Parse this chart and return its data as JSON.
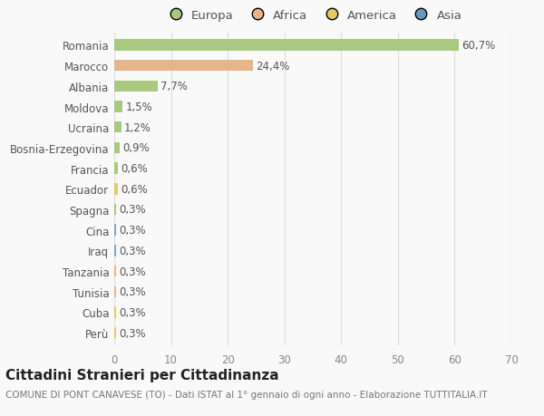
{
  "countries": [
    "Romania",
    "Marocco",
    "Albania",
    "Moldova",
    "Ucraina",
    "Bosnia-Erzegovina",
    "Francia",
    "Ecuador",
    "Spagna",
    "Cina",
    "Iraq",
    "Tanzania",
    "Tunisia",
    "Cuba",
    "Perù"
  ],
  "values": [
    60.7,
    24.4,
    7.7,
    1.5,
    1.2,
    0.9,
    0.6,
    0.6,
    0.3,
    0.3,
    0.3,
    0.3,
    0.3,
    0.3,
    0.3
  ],
  "labels": [
    "60,7%",
    "24,4%",
    "7,7%",
    "1,5%",
    "1,2%",
    "0,9%",
    "0,6%",
    "0,6%",
    "0,3%",
    "0,3%",
    "0,3%",
    "0,3%",
    "0,3%",
    "0,3%",
    "0,3%"
  ],
  "colors": [
    "#a8c97f",
    "#e8b48a",
    "#a8c97f",
    "#a8c97f",
    "#a8c97f",
    "#a8c97f",
    "#a8c97f",
    "#e8c96a",
    "#a8c97f",
    "#7ea8c9",
    "#7ea8c9",
    "#e8b48a",
    "#e8b48a",
    "#e8c96a",
    "#e8c96a"
  ],
  "legend_labels": [
    "Europa",
    "Africa",
    "America",
    "Asia"
  ],
  "legend_colors": [
    "#a8c97f",
    "#e8b48a",
    "#e8c96a",
    "#6699bb"
  ],
  "title": "Cittadini Stranieri per Cittadinanza",
  "subtitle": "COMUNE DI PONT CANAVESE (TO) - Dati ISTAT al 1° gennaio di ogni anno - Elaborazione TUTTITALIA.IT",
  "xlim": [
    0,
    70
  ],
  "xticks": [
    0,
    10,
    20,
    30,
    40,
    50,
    60,
    70
  ],
  "background_color": "#f9f9f9",
  "grid_color": "#dddddd",
  "bar_height": 0.55,
  "title_fontsize": 11,
  "subtitle_fontsize": 7.5,
  "tick_fontsize": 8.5,
  "label_fontsize": 8.5,
  "legend_fontsize": 9.5
}
